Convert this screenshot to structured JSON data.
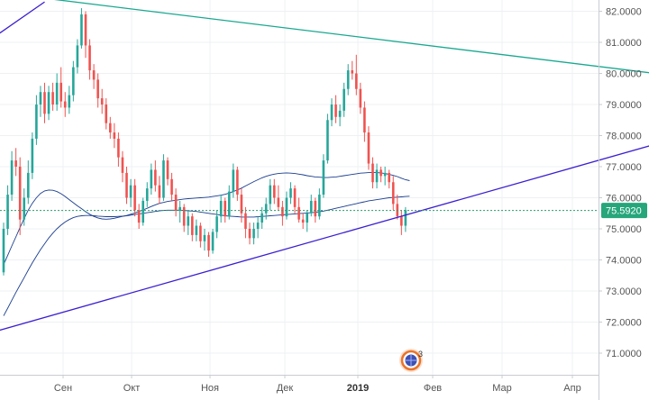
{
  "chart_data": {
    "type": "candlestick",
    "instrument_hint": "USD/RUB daily",
    "y_axis": {
      "min": 70.3,
      "max": 82.3,
      "ticks": [
        "82.0000",
        "81.0000",
        "80.0000",
        "79.0000",
        "78.0000",
        "77.0000",
        "76.0000",
        "75.0000",
        "74.0000",
        "73.0000",
        "72.0000",
        "71.0000"
      ]
    },
    "x_axis": {
      "labels": [
        "Сен",
        "Окт",
        "Ноя",
        "Дек",
        "2019",
        "Фев",
        "Мар",
        "Апр"
      ],
      "bold_label": "2019"
    },
    "current_price": {
      "value": 75.592,
      "label": "75.5920"
    },
    "candles": [
      [
        73.6,
        75.2,
        73.5,
        75.0
      ],
      [
        75.0,
        76.4,
        74.8,
        76.1
      ],
      [
        76.1,
        77.5,
        75.9,
        77.2
      ],
      [
        77.2,
        77.6,
        76.7,
        77.0
      ],
      [
        77.0,
        77.3,
        74.8,
        75.3
      ],
      [
        75.3,
        76.3,
        75.1,
        76.0
      ],
      [
        76.0,
        77.2,
        75.8,
        76.8
      ],
      [
        76.8,
        78.1,
        76.6,
        77.9
      ],
      [
        77.9,
        79.3,
        77.7,
        79.0
      ],
      [
        79.0,
        79.6,
        78.6,
        79.4
      ],
      [
        79.4,
        79.7,
        78.4,
        78.7
      ],
      [
        78.7,
        79.6,
        78.5,
        79.4
      ],
      [
        79.4,
        79.7,
        78.8,
        79.0
      ],
      [
        79.0,
        80.0,
        78.8,
        79.7
      ],
      [
        79.7,
        80.2,
        78.9,
        79.1
      ],
      [
        79.1,
        79.4,
        78.6,
        78.9
      ],
      [
        78.9,
        79.6,
        78.7,
        79.3
      ],
      [
        79.3,
        80.4,
        79.1,
        80.2
      ],
      [
        80.2,
        81.1,
        80.0,
        80.9
      ],
      [
        80.9,
        82.1,
        80.8,
        81.9
      ],
      [
        81.9,
        82.0,
        80.5,
        80.9
      ],
      [
        80.9,
        81.1,
        79.8,
        80.1
      ],
      [
        80.1,
        80.3,
        79.5,
        79.8
      ],
      [
        79.8,
        80.0,
        78.9,
        79.2
      ],
      [
        79.2,
        79.5,
        78.7,
        79.0
      ],
      [
        79.0,
        79.2,
        78.2,
        78.4
      ],
      [
        78.4,
        78.6,
        77.9,
        78.1
      ],
      [
        78.1,
        78.4,
        77.6,
        77.9
      ],
      [
        77.9,
        78.1,
        77.0,
        77.3
      ],
      [
        77.3,
        77.5,
        76.5,
        76.8
      ],
      [
        76.8,
        77.0,
        75.8,
        76.0
      ],
      [
        76.0,
        76.6,
        75.7,
        76.4
      ],
      [
        76.4,
        76.6,
        75.4,
        75.6
      ],
      [
        75.6,
        75.8,
        75.0,
        75.2
      ],
      [
        75.2,
        76.0,
        75.1,
        75.9
      ],
      [
        75.9,
        76.5,
        75.7,
        76.3
      ],
      [
        76.3,
        77.1,
        76.1,
        76.9
      ],
      [
        76.9,
        77.2,
        76.2,
        76.4
      ],
      [
        76.4,
        76.7,
        75.8,
        76.0
      ],
      [
        76.0,
        77.4,
        75.9,
        77.2
      ],
      [
        77.2,
        77.3,
        76.4,
        76.6
      ],
      [
        76.6,
        76.8,
        75.9,
        76.1
      ],
      [
        76.1,
        76.3,
        75.4,
        75.6
      ],
      [
        75.6,
        75.9,
        75.2,
        75.7
      ],
      [
        75.7,
        75.8,
        74.9,
        75.1
      ],
      [
        75.1,
        75.6,
        74.8,
        75.4
      ],
      [
        75.4,
        75.5,
        74.6,
        74.8
      ],
      [
        74.8,
        75.3,
        74.6,
        75.1
      ],
      [
        75.1,
        75.2,
        74.4,
        74.6
      ],
      [
        74.6,
        75.0,
        74.3,
        74.8
      ],
      [
        74.8,
        74.9,
        74.1,
        74.3
      ],
      [
        74.3,
        75.0,
        74.2,
        74.9
      ],
      [
        74.9,
        75.6,
        74.7,
        75.4
      ],
      [
        75.4,
        76.1,
        75.2,
        75.9
      ],
      [
        75.9,
        76.0,
        75.2,
        75.4
      ],
      [
        75.4,
        76.4,
        75.3,
        76.2
      ],
      [
        76.2,
        77.1,
        76.0,
        76.9
      ],
      [
        76.9,
        77.0,
        75.9,
        76.1
      ],
      [
        76.1,
        76.3,
        75.2,
        75.5
      ],
      [
        75.5,
        75.7,
        74.7,
        75.0
      ],
      [
        75.0,
        75.2,
        74.5,
        74.7
      ],
      [
        74.7,
        75.2,
        74.5,
        75.0
      ],
      [
        75.0,
        75.4,
        74.7,
        75.2
      ],
      [
        75.2,
        75.7,
        75.0,
        75.5
      ],
      [
        75.5,
        76.0,
        75.3,
        75.8
      ],
      [
        75.8,
        76.6,
        75.6,
        76.4
      ],
      [
        76.4,
        76.6,
        75.8,
        76.0
      ],
      [
        76.0,
        76.4,
        75.6,
        75.7
      ],
      [
        75.7,
        75.9,
        75.1,
        75.4
      ],
      [
        75.4,
        76.2,
        75.3,
        76.0
      ],
      [
        76.0,
        76.5,
        75.8,
        76.3
      ],
      [
        76.3,
        76.4,
        75.5,
        75.7
      ],
      [
        75.7,
        76.0,
        75.2,
        75.3
      ],
      [
        75.3,
        75.5,
        75.0,
        75.2
      ],
      [
        75.2,
        75.6,
        74.9,
        75.5
      ],
      [
        75.5,
        76.1,
        75.4,
        75.9
      ],
      [
        75.9,
        76.0,
        75.2,
        75.4
      ],
      [
        75.4,
        76.3,
        75.3,
        76.1
      ],
      [
        76.1,
        77.4,
        76.0,
        77.2
      ],
      [
        77.2,
        78.7,
        77.1,
        78.5
      ],
      [
        78.5,
        79.2,
        78.3,
        79.0
      ],
      [
        79.0,
        79.3,
        78.4,
        78.6
      ],
      [
        78.6,
        79.0,
        78.3,
        78.8
      ],
      [
        78.8,
        79.7,
        78.6,
        79.5
      ],
      [
        79.5,
        80.3,
        79.3,
        80.1
      ],
      [
        80.1,
        80.4,
        79.8,
        80.0
      ],
      [
        80.0,
        80.6,
        79.3,
        79.5
      ],
      [
        79.5,
        79.7,
        78.7,
        78.9
      ],
      [
        78.9,
        79.1,
        77.8,
        78.1
      ],
      [
        78.1,
        78.3,
        76.9,
        77.1
      ],
      [
        77.1,
        77.3,
        76.3,
        76.5
      ],
      [
        76.5,
        77.1,
        76.3,
        76.9
      ],
      [
        76.9,
        77.0,
        76.5,
        76.7
      ],
      [
        76.7,
        77.0,
        76.4,
        76.8
      ],
      [
        76.8,
        76.9,
        76.3,
        76.5
      ],
      [
        76.5,
        76.7,
        75.6,
        75.8
      ],
      [
        75.8,
        76.1,
        75.3,
        75.4
      ],
      [
        75.4,
        75.6,
        74.8,
        75.1
      ],
      [
        75.1,
        75.7,
        74.9,
        75.6
      ]
    ],
    "indicators": [
      {
        "name": "moving-average-fast",
        "color": "#1a3d8f",
        "start_index": 0,
        "values": [
          73.85,
          74.15,
          74.45,
          74.74,
          75.04,
          75.33,
          75.6,
          75.82,
          76.0,
          76.14,
          76.22,
          76.25,
          76.24,
          76.2,
          76.13,
          76.04,
          75.94,
          75.84,
          75.74,
          75.65,
          75.55,
          75.47,
          75.4,
          75.35,
          75.32,
          75.31,
          75.32,
          75.34,
          75.37,
          75.4,
          75.43,
          75.47,
          75.51,
          75.56,
          75.61,
          75.66,
          75.72,
          75.77,
          75.82,
          75.85,
          75.88,
          75.9,
          75.92,
          75.94,
          75.96,
          75.97,
          75.98,
          75.99,
          76.0,
          76.01,
          76.02,
          76.04,
          76.06,
          76.08,
          76.11,
          76.15,
          76.2,
          76.25,
          76.31,
          76.38,
          76.45,
          76.52,
          76.58,
          76.64,
          76.69,
          76.73,
          76.76,
          76.78,
          76.79,
          76.8,
          76.79,
          76.78,
          76.76,
          76.74,
          76.71,
          76.69,
          76.67,
          76.66,
          76.65,
          76.65,
          76.66,
          76.67,
          76.69,
          76.71,
          76.73,
          76.75,
          76.77,
          76.79,
          76.8,
          76.81,
          76.81,
          76.81,
          76.8,
          76.78,
          76.75,
          76.72,
          76.68,
          76.63,
          76.58,
          76.55
        ]
      },
      {
        "name": "moving-average-slow",
        "color": "#1a3d8f",
        "start_index": 0,
        "values": [
          72.2,
          72.45,
          72.7,
          72.95,
          73.19,
          73.43,
          73.67,
          73.9,
          74.12,
          74.33,
          74.52,
          74.7,
          74.86,
          75.0,
          75.12,
          75.22,
          75.3,
          75.36,
          75.4,
          75.42,
          75.43,
          75.43,
          75.42,
          75.41,
          75.4,
          75.39,
          75.39,
          75.39,
          75.4,
          75.41,
          75.42,
          75.44,
          75.46,
          75.48,
          75.5,
          75.52,
          75.54,
          75.56,
          75.58,
          75.59,
          75.6,
          75.6,
          75.6,
          75.6,
          75.59,
          75.58,
          75.57,
          75.56,
          75.54,
          75.52,
          75.5,
          75.48,
          75.46,
          75.44,
          75.42,
          75.41,
          75.4,
          75.39,
          75.38,
          75.38,
          75.38,
          75.38,
          75.39,
          75.4,
          75.41,
          75.42,
          75.43,
          75.44,
          75.45,
          75.46,
          75.47,
          75.48,
          75.49,
          75.5,
          75.51,
          75.52,
          75.53,
          75.55,
          75.57,
          75.6,
          75.63,
          75.66,
          75.69,
          75.72,
          75.75,
          75.78,
          75.81,
          75.84,
          75.87,
          75.9,
          75.92,
          75.94,
          75.96,
          75.98,
          76.0,
          76.01,
          76.02,
          76.03,
          76.04,
          76.05
        ]
      }
    ],
    "trend_lines": [
      {
        "name": "resistance-line-teal",
        "color": "#19a890",
        "from": {
          "index": 5,
          "value": 82.5
        },
        "to": {
          "index": 165,
          "value": 79.9
        }
      },
      {
        "name": "trend-line-upper-blue",
        "color": "#3a1fd1",
        "from": {
          "index": -2,
          "value": 81.2
        },
        "to": {
          "index": 10,
          "value": 82.3
        }
      },
      {
        "name": "support-line-blue",
        "color": "#3a1fd1",
        "from": {
          "index": -2,
          "value": 71.7
        },
        "to": {
          "index": 165,
          "value": 77.95
        }
      }
    ],
    "colors": {
      "up": "#26a69a",
      "down": "#ef5350",
      "grid": "#eef0f3",
      "price_line": "#2a9d6a",
      "price_label_bg": "#26a67a",
      "axis_text": "#555555"
    }
  },
  "badge": {
    "number": "3",
    "icon": "globe-logo-icon"
  }
}
